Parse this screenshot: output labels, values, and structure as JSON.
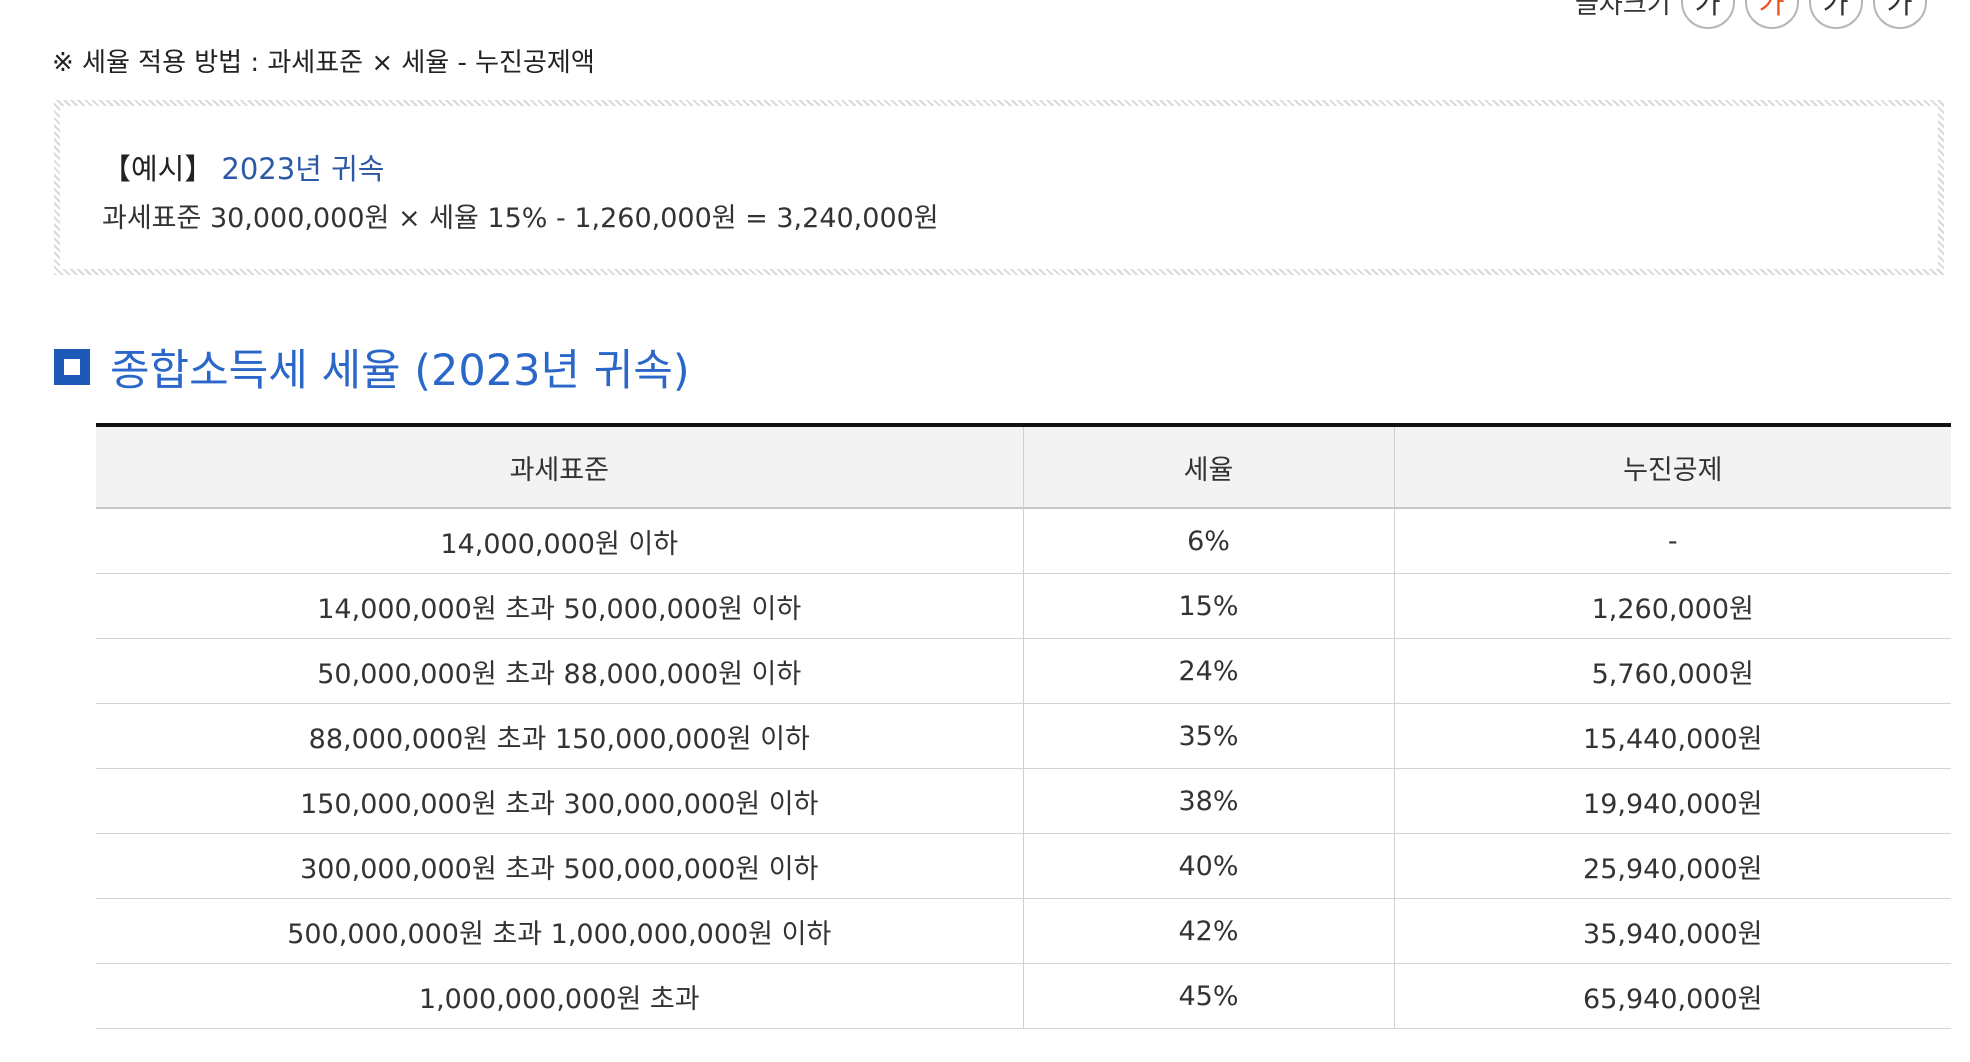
{
  "font_size_control": {
    "label": "글자크기",
    "buttons": [
      "가",
      "가",
      "가",
      "가"
    ],
    "active_index": 1,
    "active_color": "#e8541e"
  },
  "note": "※ 세율 적용 방법 : 과세표준 × 세율 - 누진공제액",
  "example": {
    "label": "【예시】",
    "year": "2023년 귀속",
    "formula": "과세표준 30,000,000원 × 세율 15% - 1,260,000원 = 3,240,000원"
  },
  "section": {
    "title": "종합소득세 세율 (2023년 귀속)",
    "accent_color": "#1d59b8"
  },
  "table": {
    "headers": [
      "과세표준",
      "세율",
      "누진공제"
    ],
    "rows": [
      [
        "14,000,000원 이하",
        "6%",
        "-"
      ],
      [
        "14,000,000원 초과 50,000,000원 이하",
        "15%",
        "1,260,000원"
      ],
      [
        "50,000,000원 초과 88,000,000원 이하",
        "24%",
        "5,760,000원"
      ],
      [
        "88,000,000원 초과 150,000,000원 이하",
        "35%",
        "15,440,000원"
      ],
      [
        "150,000,000원 초과 300,000,000원 이하",
        "38%",
        "19,940,000원"
      ],
      [
        "300,000,000원 초과 500,000,000원 이하",
        "40%",
        "25,940,000원"
      ],
      [
        "500,000,000원 초과 1,000,000,000원 이하",
        "42%",
        "35,940,000원"
      ],
      [
        "1,000,000,000원 초과",
        "45%",
        "65,940,000원"
      ]
    ]
  }
}
